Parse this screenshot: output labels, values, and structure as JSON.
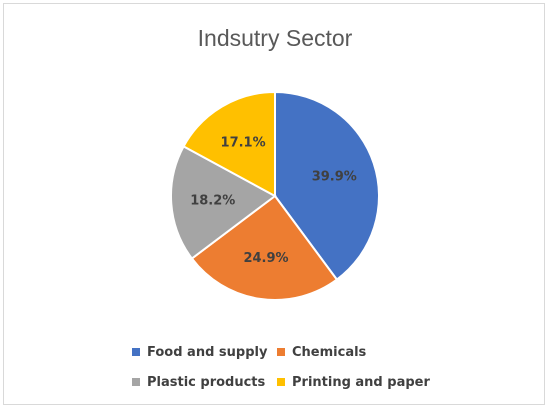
{
  "chart_data": {
    "type": "pie",
    "title": "Indsutry Sector",
    "legend_position": "bottom",
    "series": [
      {
        "name": "",
        "values": [
          39.9,
          24.9,
          18.2,
          17.1
        ]
      }
    ],
    "categories": [
      "Food and supply",
      "Chemicals",
      "Plastic products",
      "Printing and paper"
    ],
    "data_labels": [
      "39.9%",
      "24.9%",
      "18.2%",
      "17.1%"
    ],
    "colors": [
      "#4472C4",
      "#ED7D31",
      "#A5A5A5",
      "#FFC000"
    ]
  }
}
